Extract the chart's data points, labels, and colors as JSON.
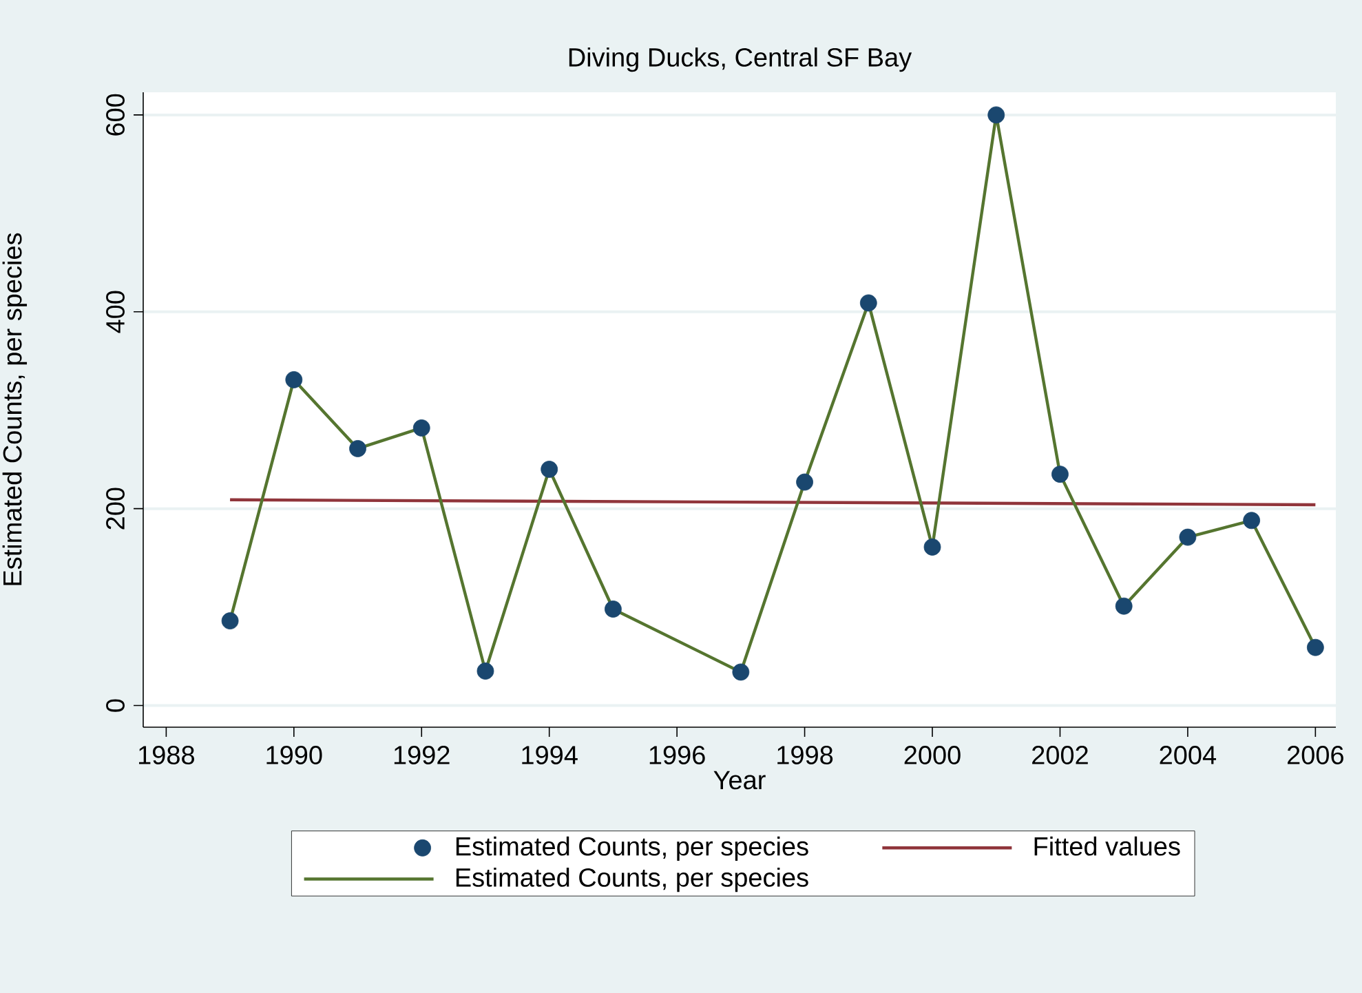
{
  "chart_data": {
    "type": "line",
    "title": "Diving Ducks, Central SF Bay",
    "xlabel": "Year",
    "ylabel": "Estimated Counts, per species",
    "x": [
      1989,
      1990,
      1991,
      1992,
      1993,
      1994,
      1995,
      1997,
      1998,
      1999,
      2000,
      2001,
      2002,
      2003,
      2004,
      2005,
      2006
    ],
    "series": [
      {
        "name": "Estimated Counts, per species",
        "type": "scatter",
        "marker": "circle",
        "color": "#1a476f",
        "values": [
          86,
          331,
          261,
          282,
          35,
          240,
          98,
          34,
          227,
          409,
          161,
          600,
          235,
          101,
          171,
          188,
          59
        ]
      },
      {
        "name": "Fitted values",
        "marker": "none",
        "color": "#90353b",
        "x": [
          1989,
          2006
        ],
        "values": [
          209,
          204
        ]
      },
      {
        "name": "Estimated Counts, per species",
        "marker": "none",
        "color": "#55752f",
        "values": [
          86,
          331,
          261,
          282,
          35,
          240,
          98,
          34,
          227,
          409,
          161,
          600,
          235,
          101,
          171,
          188,
          59
        ]
      }
    ],
    "xlim": [
      1987.64,
      2006.32
    ],
    "ylim": [
      -22,
      623
    ],
    "xticks": [
      1988,
      1990,
      1992,
      1994,
      1996,
      1998,
      2000,
      2002,
      2004,
      2006
    ],
    "yticks": [
      0,
      200,
      400,
      600
    ],
    "grid": "y",
    "legend": "bottom"
  }
}
